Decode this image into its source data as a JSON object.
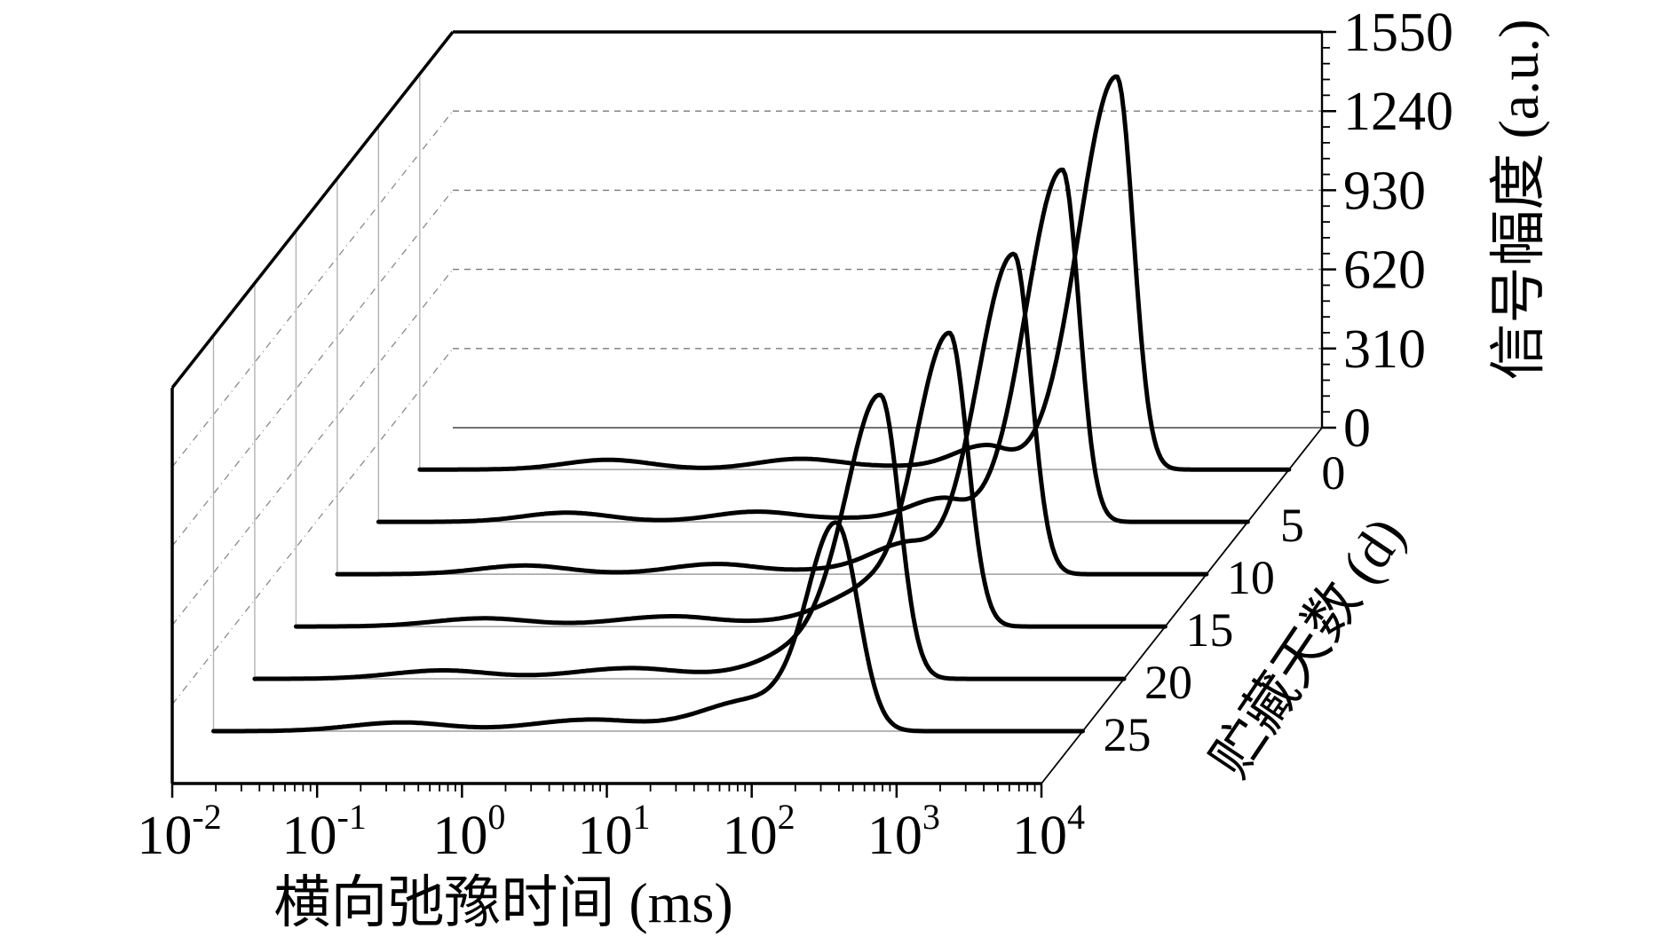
{
  "chart_data": {
    "type": "line",
    "subtype": "waterfall3d",
    "title": "",
    "xlabel": "横向弛豫时间 (ms)",
    "zlabel": "信号幅度 (a.u.)",
    "depth_label": "贮藏天数 (d)",
    "x_scale": "log",
    "x_range_ms": [
      0.01,
      10000
    ],
    "x_tick_base": "10",
    "x_tick_exponents": [
      -2,
      -1,
      0,
      1,
      2,
      3,
      4
    ],
    "z_range": [
      0,
      1550
    ],
    "z_ticks": [
      0,
      310,
      620,
      930,
      1240,
      1550
    ],
    "z_minor_step": 62,
    "grid": "dashed-back-wall",
    "legend": "none",
    "depth_days": [
      0,
      5,
      10,
      15,
      20,
      25
    ],
    "series": [
      {
        "name": "0 d",
        "day": 0,
        "main_peak_t2_ms": 646,
        "main_peak_amplitude": 1540,
        "peaks": [
          [
            -0.7,
            38,
            0.3,
            0.3
          ],
          [
            0.63,
            42,
            0.3,
            0.3
          ],
          [
            1.35,
            10,
            0.25,
            0.25
          ],
          [
            1.9,
            92,
            0.22,
            0.16
          ],
          [
            2.81,
            1540,
            0.26,
            0.115
          ]
        ]
      },
      {
        "name": "5 d",
        "day": 5,
        "main_peak_t2_ms": 525,
        "main_peak_amplitude": 1380,
        "peaks": [
          [
            -0.7,
            36,
            0.3,
            0.3
          ],
          [
            0.61,
            40,
            0.3,
            0.3
          ],
          [
            1.35,
            12,
            0.25,
            0.25
          ],
          [
            1.88,
            88,
            0.22,
            0.16
          ],
          [
            2.72,
            1380,
            0.25,
            0.115
          ]
        ]
      },
      {
        "name": "10 d",
        "day": 10,
        "main_peak_t2_ms": 468,
        "main_peak_amplitude": 1255,
        "peaks": [
          [
            -0.7,
            34,
            0.32,
            0.3
          ],
          [
            0.62,
            40,
            0.32,
            0.3
          ],
          [
            1.4,
            15,
            0.25,
            0.25
          ],
          [
            1.91,
            112,
            0.24,
            0.17
          ],
          [
            2.67,
            1255,
            0.25,
            0.12
          ]
        ]
      },
      {
        "name": "15 d",
        "day": 15,
        "main_peak_t2_ms": 324,
        "main_peak_amplitude": 1150,
        "peaks": [
          [
            -0.7,
            32,
            0.35,
            0.32
          ],
          [
            0.6,
            40,
            0.4,
            0.32
          ],
          [
            1.4,
            18,
            0.27,
            0.25
          ],
          [
            1.9,
            122,
            0.26,
            0.18
          ],
          [
            2.51,
            1150,
            0.24,
            0.125
          ]
        ]
      },
      {
        "name": "20 d",
        "day": 20,
        "main_peak_t2_ms": 209,
        "main_peak_amplitude": 1100,
        "peaks": [
          [
            -0.7,
            33,
            0.35,
            0.32
          ],
          [
            0.6,
            42,
            0.4,
            0.34
          ],
          [
            1.45,
            22,
            0.28,
            0.26
          ],
          [
            1.88,
            132,
            0.28,
            0.2
          ],
          [
            2.32,
            1100,
            0.23,
            0.13
          ]
        ]
      },
      {
        "name": "25 d",
        "day": 25,
        "main_peak_t2_ms": 200,
        "main_peak_amplitude": 805,
        "peaks": [
          [
            -0.7,
            34,
            0.35,
            0.32
          ],
          [
            0.6,
            45,
            0.4,
            0.35
          ],
          [
            1.5,
            55,
            0.3,
            0.28
          ],
          [
            1.85,
            90,
            0.3,
            0.22
          ],
          [
            2.3,
            805,
            0.2,
            0.15
          ]
        ]
      }
    ],
    "colors": {
      "curve": "#000000",
      "frame": "#000000",
      "back_grid": "#7a7a7a",
      "wall_grid": "#8a8a8a",
      "wall_vertical": "#b3b3b3",
      "plane_baseline": "#9e9e9e",
      "back_bottom": "#444444"
    }
  }
}
